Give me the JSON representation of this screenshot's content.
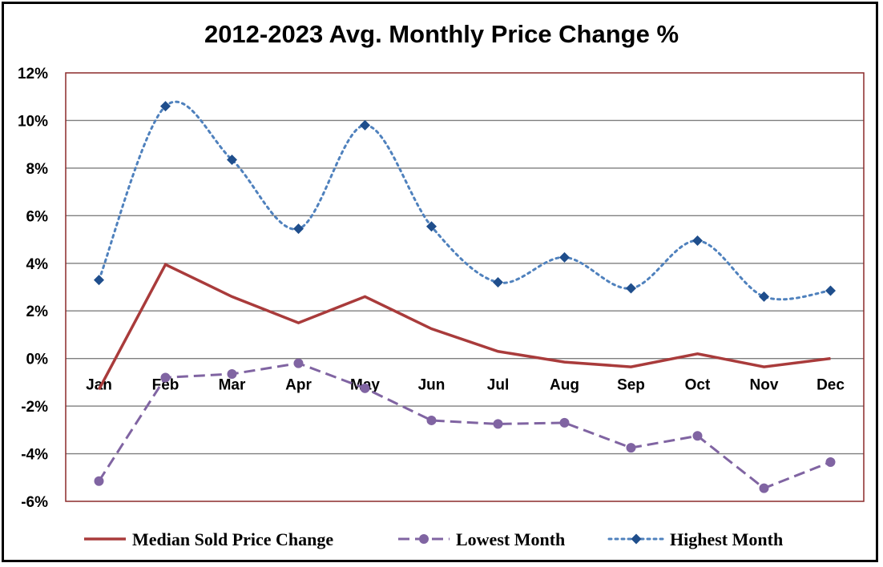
{
  "chart_data": {
    "type": "line",
    "title": "2012-2023 Avg. Monthly Price Change %",
    "xlabel": "",
    "ylabel": "",
    "categories": [
      "Jan",
      "Feb",
      "Mar",
      "Apr",
      "May",
      "Jun",
      "Jul",
      "Aug",
      "Sep",
      "Oct",
      "Nov",
      "Dec"
    ],
    "ylim": [
      -6,
      12
    ],
    "yticks": [
      12,
      10,
      8,
      6,
      4,
      2,
      0,
      -2,
      -4,
      -6
    ],
    "ytick_labels": [
      "12%",
      "10%",
      "8%",
      "6%",
      "4%",
      "2%",
      "0%",
      "-2%",
      "-4%",
      "-6%"
    ],
    "grid": true,
    "legend_position": "bottom",
    "series": [
      {
        "name": "Median Sold Price Change",
        "color": "#A93B3B",
        "style": "solid",
        "marker": "none",
        "smooth": false,
        "values": [
          -1.3,
          3.95,
          2.6,
          1.5,
          2.6,
          1.25,
          0.3,
          -0.15,
          -0.35,
          0.2,
          -0.35,
          0.0
        ]
      },
      {
        "name": "Lowest Month",
        "color": "#8064A2",
        "style": "dashed",
        "marker": "circle",
        "smooth": false,
        "values": [
          -5.15,
          -0.8,
          -0.65,
          -0.2,
          -1.25,
          -2.6,
          -2.75,
          -2.7,
          -3.75,
          -3.25,
          -5.45,
          -4.35
        ]
      },
      {
        "name": "Highest Month",
        "color": "#4F81BD",
        "marker_color": "#1F4E8C",
        "style": "dotted",
        "marker": "diamond",
        "smooth": true,
        "values": [
          3.3,
          10.6,
          8.35,
          5.45,
          9.8,
          5.55,
          3.2,
          4.25,
          2.95,
          4.95,
          2.6,
          2.85
        ]
      }
    ]
  }
}
